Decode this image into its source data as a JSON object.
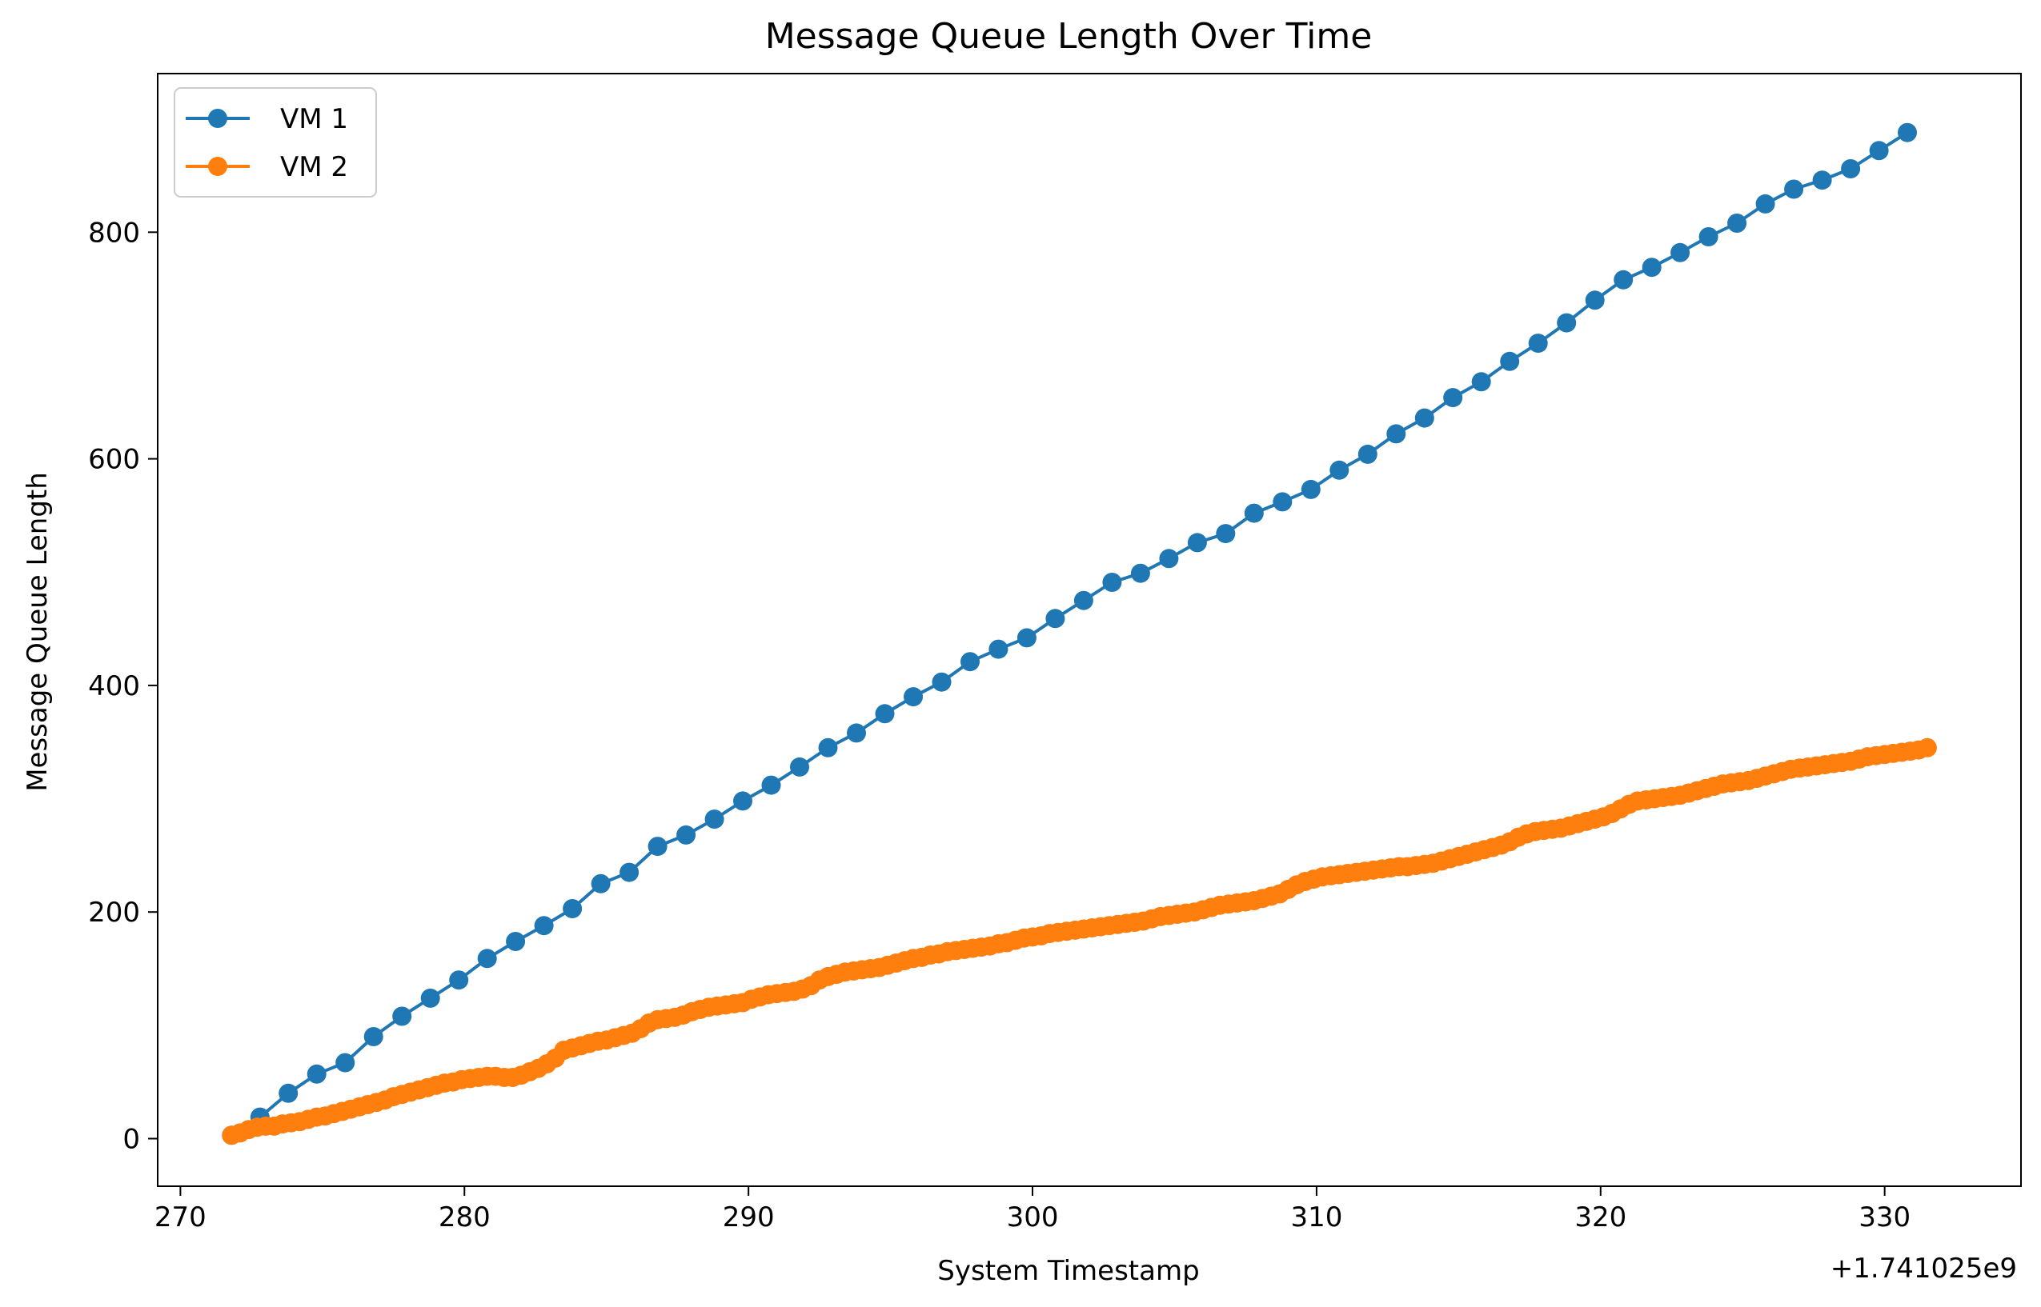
{
  "chart_data": {
    "type": "line",
    "title": "Message Queue Length Over Time",
    "xlabel": "System Timestamp",
    "ylabel": "Message Queue Length",
    "x_offset_label": "+1.741025e9",
    "xlim": [
      269.2,
      334.8
    ],
    "ylim": [
      -42,
      940
    ],
    "xticks": [
      270,
      280,
      290,
      300,
      310,
      320,
      330
    ],
    "xtick_labels": [
      "270",
      "280",
      "290",
      "300",
      "310",
      "320",
      "330"
    ],
    "yticks": [
      0,
      200,
      400,
      600,
      800
    ],
    "ytick_labels": [
      "0",
      "200",
      "400",
      "600",
      "800"
    ],
    "grid": false,
    "legend_position": "top-left",
    "series": [
      {
        "name": "VM 1",
        "color": "#1f77b4",
        "x": [
          271.8,
          272.8,
          273.8,
          274.8,
          275.8,
          276.8,
          277.8,
          278.8,
          279.8,
          280.8,
          281.8,
          282.8,
          283.8,
          284.8,
          285.8,
          286.8,
          287.8,
          288.8,
          289.8,
          290.8,
          291.8,
          292.8,
          293.8,
          294.8,
          295.8,
          296.8,
          297.8,
          298.8,
          299.8,
          300.8,
          301.8,
          302.8,
          303.8,
          304.8,
          305.8,
          306.8,
          307.8,
          308.8,
          309.8,
          310.8,
          311.8,
          312.8,
          313.8,
          314.8,
          315.8,
          316.8,
          317.8,
          318.8,
          319.8,
          320.8,
          321.8,
          322.8,
          323.8,
          324.8,
          325.8,
          326.8,
          327.8,
          328.8,
          329.8,
          330.8
        ],
        "y": [
          3,
          19,
          40,
          57,
          67,
          90,
          108,
          124,
          140,
          159,
          174,
          188,
          203,
          225,
          235,
          258,
          268,
          282,
          298,
          312,
          328,
          345,
          358,
          375,
          390,
          403,
          421,
          432,
          442,
          459,
          475,
          491,
          499,
          512,
          526,
          534,
          552,
          562,
          573,
          590,
          604,
          622,
          636,
          654,
          668,
          686,
          702,
          720,
          740,
          758,
          769,
          782,
          796,
          808,
          825,
          838,
          846,
          856,
          872,
          888
        ]
      },
      {
        "name": "VM 2",
        "color": "#ff7f0e",
        "x": [
          271.8,
          272.1,
          272.4,
          272.7,
          273.0,
          273.3,
          273.6,
          273.9,
          274.2,
          274.5,
          274.8,
          275.1,
          275.4,
          275.7,
          276.0,
          276.3,
          276.6,
          276.9,
          277.2,
          277.5,
          277.8,
          278.1,
          278.4,
          278.7,
          279.0,
          279.3,
          279.6,
          279.9,
          280.2,
          280.5,
          280.8,
          281.1,
          281.4,
          281.7,
          282.0,
          282.3,
          282.6,
          282.9,
          283.2,
          283.5,
          283.8,
          284.1,
          284.4,
          284.7,
          285.0,
          285.3,
          285.6,
          285.9,
          286.2,
          286.5,
          286.8,
          287.1,
          287.4,
          287.7,
          288.0,
          288.3,
          288.6,
          288.9,
          289.2,
          289.5,
          289.8,
          290.1,
          290.4,
          290.7,
          291.0,
          291.3,
          291.6,
          291.9,
          292.2,
          292.5,
          292.8,
          293.1,
          293.4,
          293.7,
          294.0,
          294.3,
          294.6,
          294.9,
          295.2,
          295.5,
          295.8,
          296.1,
          296.4,
          296.7,
          297.0,
          297.3,
          297.6,
          297.9,
          298.2,
          298.5,
          298.8,
          299.1,
          299.4,
          299.7,
          300.0,
          300.3,
          300.6,
          300.9,
          301.2,
          301.5,
          301.8,
          302.1,
          302.4,
          302.7,
          303.0,
          303.3,
          303.6,
          303.9,
          304.2,
          304.5,
          304.8,
          305.1,
          305.4,
          305.7,
          306.0,
          306.3,
          306.6,
          306.9,
          307.2,
          307.5,
          307.8,
          308.1,
          308.4,
          308.7,
          309.0,
          309.3,
          309.6,
          309.9,
          310.2,
          310.5,
          310.8,
          311.1,
          311.4,
          311.7,
          312.0,
          312.3,
          312.6,
          312.9,
          313.2,
          313.5,
          313.8,
          314.1,
          314.4,
          314.7,
          315.0,
          315.3,
          315.6,
          315.9,
          316.2,
          316.5,
          316.8,
          317.1,
          317.4,
          317.7,
          318.0,
          318.3,
          318.6,
          318.9,
          319.2,
          319.5,
          319.8,
          320.1,
          320.4,
          320.7,
          321.0,
          321.3,
          321.6,
          321.9,
          322.2,
          322.5,
          322.8,
          323.1,
          323.4,
          323.7,
          324.0,
          324.3,
          324.6,
          324.9,
          325.2,
          325.5,
          325.8,
          326.1,
          326.4,
          326.7,
          327.0,
          327.3,
          327.6,
          327.9,
          328.2,
          328.5,
          328.8,
          329.1,
          329.4,
          329.7,
          330.0,
          330.3,
          330.6,
          330.9,
          331.2,
          331.5
        ],
        "y": [
          3,
          5,
          8,
          10,
          11,
          11,
          13,
          14,
          15,
          17,
          19,
          20,
          22,
          24,
          26,
          28,
          30,
          32,
          34,
          37,
          39,
          41,
          43,
          45,
          47,
          49,
          50,
          52,
          53,
          54,
          55,
          55,
          54,
          54,
          56,
          59,
          62,
          66,
          71,
          78,
          80,
          82,
          84,
          86,
          87,
          89,
          91,
          93,
          97,
          102,
          105,
          106,
          107,
          109,
          112,
          114,
          116,
          117,
          118,
          119,
          120,
          123,
          125,
          127,
          128,
          129,
          130,
          132,
          135,
          140,
          143,
          145,
          147,
          148,
          149,
          150,
          151,
          153,
          155,
          157,
          159,
          160,
          162,
          163,
          165,
          166,
          167,
          168,
          169,
          170,
          172,
          173,
          175,
          177,
          178,
          179,
          181,
          182,
          183,
          184,
          185,
          186,
          187,
          188,
          189,
          190,
          191,
          192,
          194,
          196,
          197,
          198,
          199,
          200,
          202,
          204,
          206,
          207,
          208,
          209,
          210,
          212,
          214,
          216,
          220,
          224,
          227,
          229,
          231,
          232,
          233,
          234,
          235,
          236,
          237,
          238,
          239,
          240,
          240,
          241,
          242,
          243,
          245,
          247,
          249,
          251,
          253,
          255,
          257,
          259,
          262,
          266,
          269,
          271,
          272,
          273,
          274,
          276,
          278,
          280,
          282,
          284,
          287,
          291,
          295,
          298,
          299,
          300,
          301,
          302,
          303,
          305,
          307,
          309,
          311,
          313,
          314,
          315,
          316,
          318,
          320,
          322,
          324,
          326,
          327,
          328,
          329,
          330,
          331,
          332,
          333,
          335,
          337,
          338,
          339,
          340,
          341,
          342,
          343,
          345
        ]
      }
    ]
  }
}
